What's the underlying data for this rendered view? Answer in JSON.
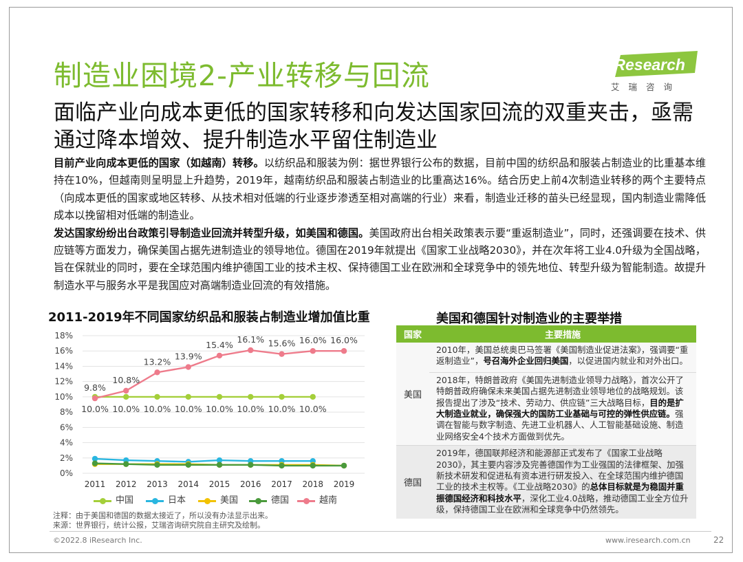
{
  "header": {
    "title": "制造业困境2-产业转移与回流",
    "subtitle": "面临产业向成本更低的国家转移和向发达国家回流的双重夹击，亟需通过降本增效、提升制造水平留住制造业"
  },
  "logo": {
    "brand": "iResearch",
    "cn": "艾瑞咨询"
  },
  "body": {
    "p1_bold": "目前产业向成本更低的国家（如越南）转移。",
    "p1_text": "以纺织品和服装为例：据世界银行公布的数据，目前中国的纺织品和服装占制造业的比重基本维持在10%，但越南则呈明显上升趋势，2019年，越南纺织品和服装占制造业的比重高达16%。结合历史上前4次制造业转移的两个主要特点（向成本更低的国家或地区转移、从技术相对低端的行业逐步渗透至相对高端的行业）来看，制造业迁移的苗头已经显现，国内制造业需降低成本以挽留相对低端的制造业。",
    "p2_bold": "发达国家纷纷出台政策引导制造业回流并转型升级，如美国和德国。",
    "p2_text": "美国政府出台相关政策表示要“重返制造业”，同时，还强调要在技术、供应链等方面发力，确保美国占据先进制造业的领导地位。德国在2019年就提出《国家工业战略2030》，并在次年将工业4.0升级为全国战略，旨在保就业的同时，要在全球范围内维护德国工业的技术主权、保持德国工业在欧洲和全球竞争中的领先地位、转型升级为智能制造。故提升制造水平与服务水平是我国应对高端制造业回流的有效措施。"
  },
  "chart_data": {
    "type": "line",
    "title": "2011-2019年不同国家纺织品和服装占制造业增加值比重",
    "categories": [
      "2011",
      "2012",
      "2013",
      "2014",
      "2015",
      "2016",
      "2017",
      "2018",
      "2019"
    ],
    "y_ticks": [
      "0%",
      "2%",
      "4%",
      "6%",
      "8%",
      "10%",
      "12%",
      "14%",
      "16%",
      "18%"
    ],
    "ylim": [
      0,
      18
    ],
    "grid": true,
    "legend_position": "bottom",
    "series": [
      {
        "name": "中国",
        "color": "#a4cf3a",
        "values": [
          10.0,
          10.0,
          10.0,
          10.0,
          10.0,
          10.0,
          10.0,
          10.0,
          null
        ],
        "labels": [
          "10.0%",
          "10.0%",
          "10.0%",
          "10.0%",
          "10.0%",
          "10.0%",
          "10.0%",
          "10.0%",
          null
        ],
        "label_pos": "below"
      },
      {
        "name": "日本",
        "color": "#29b6e0",
        "values": [
          1.9,
          1.7,
          1.6,
          1.5,
          1.7,
          1.6,
          1.6,
          1.6,
          null
        ]
      },
      {
        "name": "美国",
        "color": "#f2c200",
        "values": [
          1.2,
          1.2,
          1.2,
          1.2,
          1.1,
          1.1,
          1.1,
          1.1,
          1.0
        ]
      },
      {
        "name": "德国",
        "color": "#4a9a3c",
        "values": [
          1.3,
          1.2,
          1.1,
          1.1,
          1.1,
          1.1,
          1.0,
          1.0,
          1.0
        ]
      },
      {
        "name": "越南",
        "color": "#ee7b8b",
        "values": [
          9.8,
          10.8,
          13.2,
          13.9,
          15.4,
          16.1,
          15.6,
          16.0,
          16.0
        ],
        "labels": [
          "9.8%",
          "10.8%",
          "13.2%",
          "13.9%",
          "15.4%",
          "16.1%",
          "15.6%",
          "16.0%",
          "16.0%"
        ],
        "label_pos": "above"
      }
    ]
  },
  "chart_notes": {
    "note": "注释：由于美国和德国的数据太接近了，所以没有办法显示出来。",
    "source": "来源：世界银行，统计公报，艾瑞咨询研究院自主研究及绘制。"
  },
  "table": {
    "title": "美国和德国针对制造业的主要举措",
    "col_country": "国家",
    "col_measures": "主要措施",
    "us": {
      "country": "美国",
      "m1_a": "2010年，美国总统奥巴马签署《美国制造业促进法案》，强调要“重返制造业”，",
      "m1_b": "号召海外企业回归美国",
      "m1_c": "，以促进国内就业和对外出口。",
      "m2_a": "2018年，特朗普政府《美国先进制造业领导力战略》，首次公开了特朗普政府确保未来美国占据先进制造业领导地位的战略规划。该报告提出了涉及“技术、劳动力、供应链”三大战略目标，",
      "m2_b": "目的是扩大制造业就业，确保强大的国防工业基础与可控的弹性供应链。",
      "m2_c": "强调在智能与数字制造、先进工业机器人、人工智能基础设施、制造业网络安全4个技术方面做到优先。"
    },
    "de": {
      "country": "德国",
      "m1_a": "2019年，德国联邦经济和能源部正式发布了《国家工业战略2030》，其主要内容涉及完善德国作为工业强国的法律框架、加强新技术研发和促进私有资本进行研发投入、在全球范围内维护德国工业的技术主权等。《工业战略2030》的",
      "m1_b": "总体目标就是为稳固并重振德国经济和科技水平",
      "m1_c": "，深化工业4.0战略，推动德国工业全方位升级，保持德国工业在欧洲和全球竞争中仍然领先。"
    }
  },
  "footer": {
    "copyright": "©2022.8 iResearch Inc.",
    "url": "www.iresearch.com.cn",
    "page": "22"
  }
}
